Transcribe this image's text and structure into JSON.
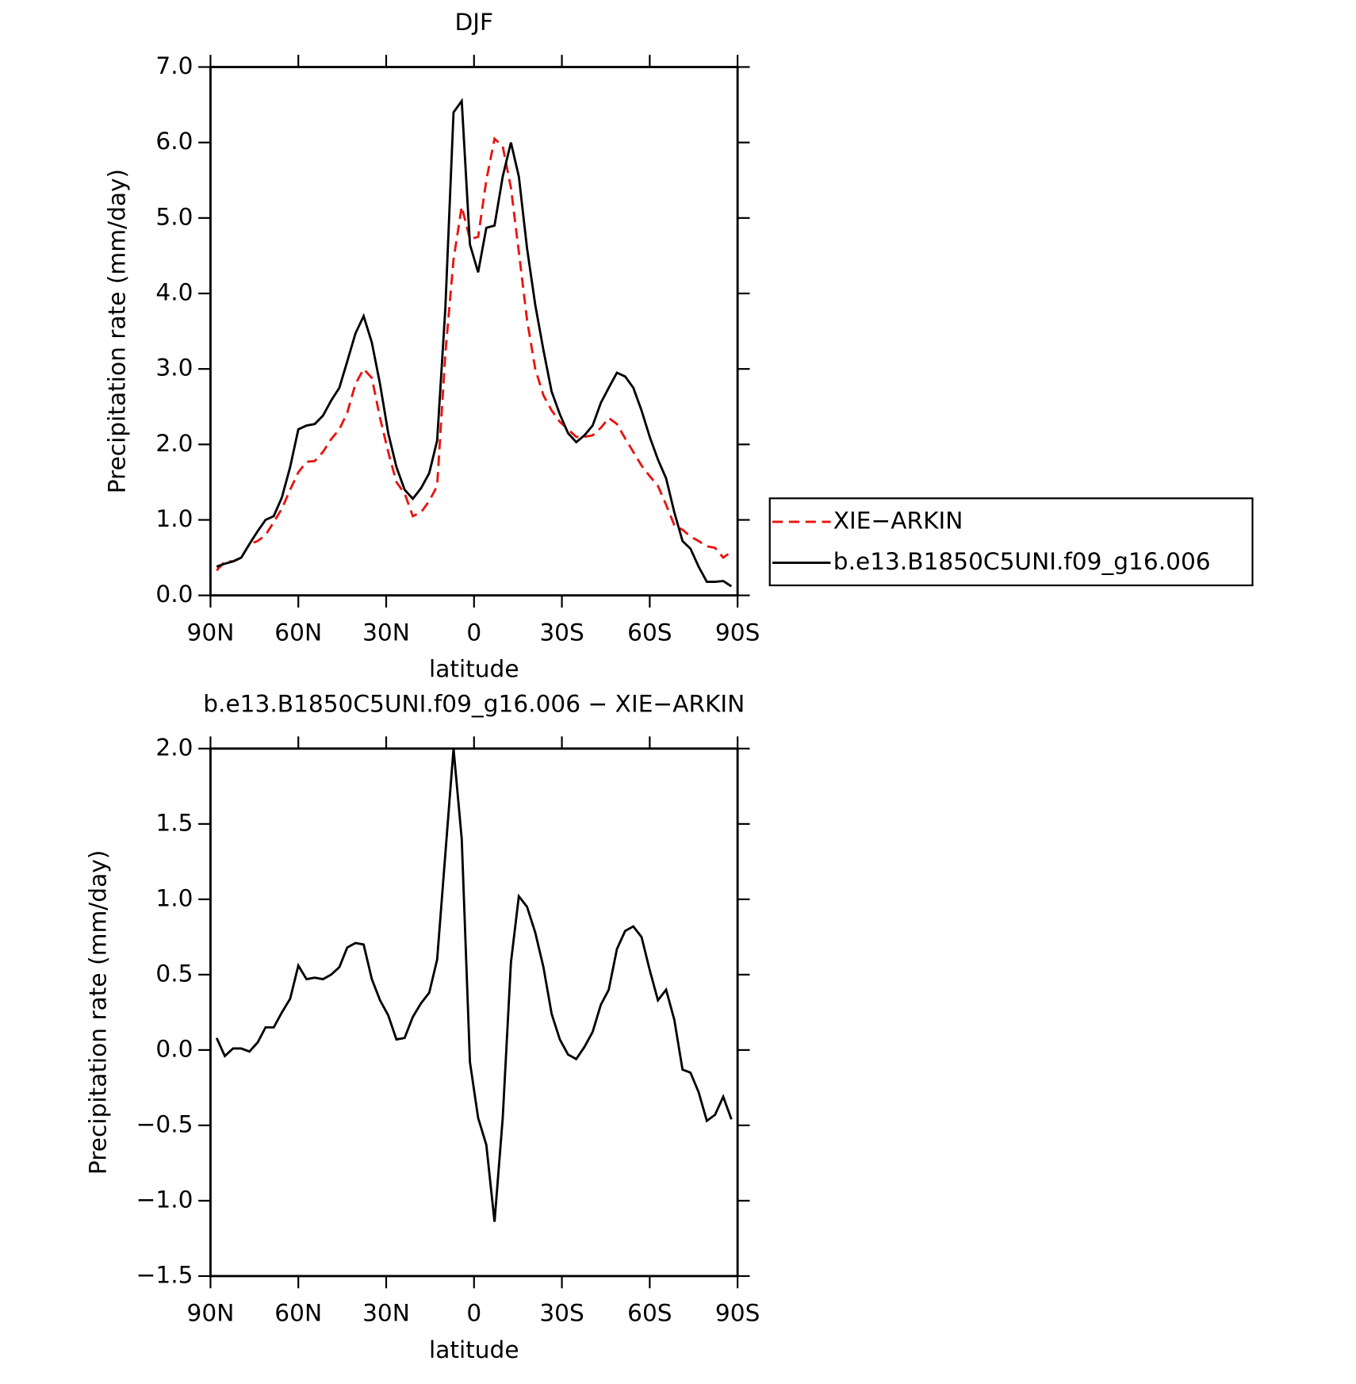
{
  "chart_data": [
    {
      "type": "line",
      "title": "DJF",
      "x_label": "latitude",
      "y_label": "Precipitation rate (mm/day)",
      "xlim": [
        90,
        -90
      ],
      "xticks": [
        {
          "value": 90,
          "label": "90N"
        },
        {
          "value": 60,
          "label": "60N"
        },
        {
          "value": 30,
          "label": "30N"
        },
        0,
        {
          "value": -30,
          "label": "30S"
        },
        {
          "value": -60,
          "label": "60S"
        },
        {
          "value": -90,
          "label": "90S"
        }
      ],
      "ylim": [
        0,
        7
      ],
      "yticks": [
        {
          "value": 0,
          "label": "0.0"
        },
        {
          "value": 1,
          "label": "1.0"
        },
        {
          "value": 2,
          "label": "2.0"
        },
        {
          "value": 3,
          "label": "3.0"
        },
        {
          "value": 4,
          "label": "4.0"
        },
        {
          "value": 5,
          "label": "5.0"
        },
        {
          "value": 6,
          "label": "6.0"
        },
        {
          "value": 7,
          "label": "7.0"
        }
      ],
      "legend": "right",
      "x": [
        87.9,
        85.1,
        82.3,
        79.5,
        76.7,
        73.9,
        71.2,
        68.4,
        65.6,
        62.8,
        60.0,
        57.2,
        54.4,
        51.6,
        48.8,
        46.0,
        43.3,
        40.5,
        37.7,
        34.9,
        32.1,
        29.3,
        26.5,
        23.7,
        20.9,
        18.1,
        15.3,
        12.6,
        9.8,
        7.0,
        4.2,
        1.4,
        -1.4,
        -4.2,
        -7.0,
        -9.8,
        -12.6,
        -15.3,
        -18.1,
        -20.9,
        -23.7,
        -26.5,
        -29.3,
        -32.1,
        -34.9,
        -37.7,
        -40.5,
        -43.3,
        -46.0,
        -48.8,
        -51.6,
        -54.4,
        -57.2,
        -60.0,
        -62.8,
        -65.6,
        -68.4,
        -71.2,
        -73.9,
        -76.7,
        -79.5,
        -82.3,
        -85.1,
        -87.9
      ],
      "series": [
        {
          "name": "XIE−ARKIN",
          "color": "#e8140e",
          "dashed": true,
          "values": [
            0.33,
            0.45,
            0.45,
            0.5,
            0.68,
            0.72,
            0.8,
            0.97,
            1.15,
            1.4,
            1.63,
            1.77,
            1.78,
            1.9,
            2.07,
            2.2,
            2.42,
            2.8,
            3.0,
            2.88,
            2.35,
            1.9,
            1.5,
            1.35,
            1.05,
            1.1,
            1.25,
            1.45,
            3.2,
            4.45,
            5.15,
            4.72,
            4.75,
            5.5,
            6.05,
            5.95,
            5.4,
            4.55,
            3.65,
            3.0,
            2.65,
            2.45,
            2.3,
            2.2,
            2.1,
            2.1,
            2.12,
            2.22,
            2.35,
            2.27,
            2.08,
            1.9,
            1.72,
            1.58,
            1.45,
            1.2,
            0.93,
            0.87,
            0.78,
            0.72,
            0.65,
            0.63,
            0.5,
            0.58
          ]
        },
        {
          "name": "b.e13.B1850C5UNI.f09_g16.006",
          "color": "#000000",
          "dashed": false,
          "values": [
            0.38,
            0.42,
            0.45,
            0.5,
            0.68,
            0.85,
            1.0,
            1.05,
            1.3,
            1.7,
            2.2,
            2.25,
            2.27,
            2.38,
            2.58,
            2.75,
            3.1,
            3.47,
            3.7,
            3.35,
            2.8,
            2.15,
            1.7,
            1.4,
            1.28,
            1.42,
            1.62,
            2.05,
            3.8,
            6.4,
            6.55,
            4.65,
            4.28,
            4.87,
            4.9,
            5.55,
            6.0,
            5.55,
            4.6,
            3.85,
            3.25,
            2.7,
            2.4,
            2.15,
            2.03,
            2.12,
            2.25,
            2.55,
            2.75,
            2.95,
            2.9,
            2.75,
            2.45,
            2.1,
            1.8,
            1.55,
            1.1,
            0.72,
            0.62,
            0.38,
            0.18,
            0.18,
            0.19,
            0.12
          ]
        }
      ]
    },
    {
      "type": "line",
      "title": "b.e13.B1850C5UNI.f09_g16.006 − XIE−ARKIN",
      "x_label": "latitude",
      "y_label": "Precipitation rate (mm/day)",
      "xlim": [
        90,
        -90
      ],
      "xticks": [
        {
          "value": 90,
          "label": "90N"
        },
        {
          "value": 60,
          "label": "60N"
        },
        {
          "value": 30,
          "label": "30N"
        },
        0,
        {
          "value": -30,
          "label": "30S"
        },
        {
          "value": -60,
          "label": "60S"
        },
        {
          "value": -90,
          "label": "90S"
        }
      ],
      "ylim": [
        -1.5,
        2.0
      ],
      "yticks": [
        {
          "value": -1.5,
          "label": "−1.5"
        },
        {
          "value": -1.0,
          "label": "−1.0"
        },
        {
          "value": -0.5,
          "label": "−0.5"
        },
        {
          "value": 0,
          "label": "0.0"
        },
        0.5,
        {
          "value": 1,
          "label": "1.0"
        },
        1.5,
        {
          "value": 2,
          "label": "2.0"
        }
      ],
      "x": [
        87.9,
        85.1,
        82.3,
        79.5,
        76.7,
        73.9,
        71.2,
        68.4,
        65.6,
        62.8,
        60.0,
        57.2,
        54.4,
        51.6,
        48.8,
        46.0,
        43.3,
        40.5,
        37.7,
        34.9,
        32.1,
        29.3,
        26.5,
        23.7,
        20.9,
        18.1,
        15.3,
        12.6,
        9.8,
        7.0,
        4.2,
        1.4,
        -1.4,
        -4.2,
        -7.0,
        -9.8,
        -12.6,
        -15.3,
        -18.1,
        -20.9,
        -23.7,
        -26.5,
        -29.3,
        -32.1,
        -34.9,
        -37.7,
        -40.5,
        -43.3,
        -46.0,
        -48.8,
        -51.6,
        -54.4,
        -57.2,
        -60.0,
        -62.8,
        -65.6,
        -68.4,
        -71.2,
        -73.9,
        -76.7,
        -79.5,
        -82.3,
        -85.1,
        -87.9
      ],
      "series": [
        {
          "color": "#000000",
          "dashed": false,
          "values": [
            0.08,
            -0.04,
            0.01,
            0.01,
            -0.01,
            0.05,
            0.15,
            0.15,
            0.25,
            0.34,
            0.56,
            0.47,
            0.48,
            0.47,
            0.5,
            0.55,
            0.68,
            0.71,
            0.7,
            0.47,
            0.33,
            0.23,
            0.07,
            0.08,
            0.22,
            0.31,
            0.38,
            0.6,
            1.3,
            2.0,
            1.4,
            -0.08,
            -0.45,
            -0.63,
            -1.14,
            -0.45,
            0.58,
            1.02,
            0.95,
            0.78,
            0.55,
            0.24,
            0.07,
            -0.03,
            -0.06,
            0.02,
            0.12,
            0.3,
            0.4,
            0.67,
            0.79,
            0.82,
            0.75,
            0.53,
            0.33,
            0.4,
            0.2,
            -0.13,
            -0.15,
            -0.28,
            -0.47,
            -0.43,
            -0.31,
            -0.46
          ]
        }
      ]
    }
  ]
}
